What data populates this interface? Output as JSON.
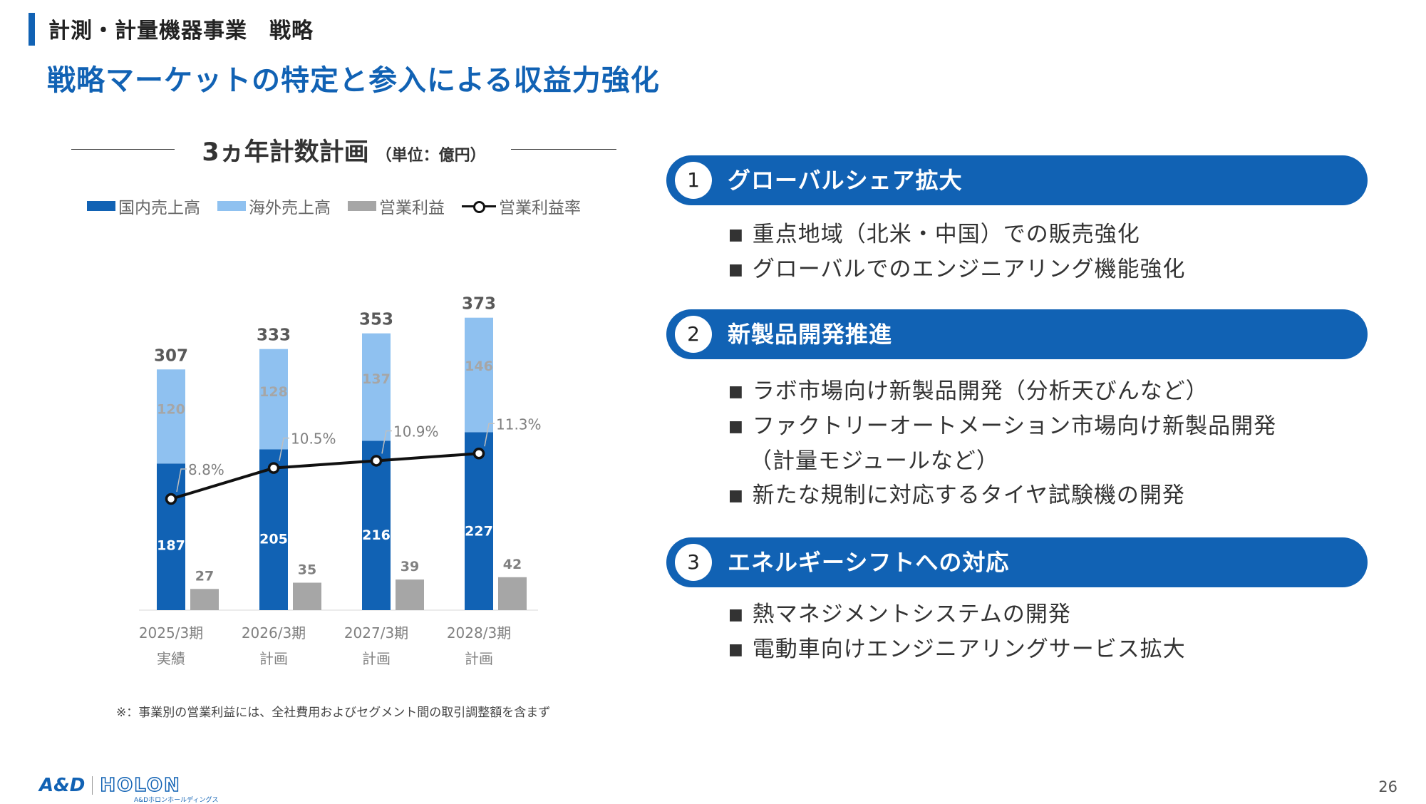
{
  "header": {
    "section_title": "計測・計量機器事業　戦略",
    "headline": "戦略マーケットの特定と参入による収益力強化"
  },
  "chart_title": {
    "main": "3ヵ年計数計画",
    "unit": "（単位：億円）"
  },
  "chart_data": {
    "type": "bar",
    "categories": [
      "2025/3期\n実績",
      "2026/3期\n計画",
      "2027/3期\n計画",
      "2028/3期\n計画"
    ],
    "category_lines": [
      [
        "2025/3期",
        "実績"
      ],
      [
        "2026/3期",
        "計画"
      ],
      [
        "2027/3期",
        "計画"
      ],
      [
        "2028/3期",
        "計画"
      ]
    ],
    "series": [
      {
        "name": "国内売上高",
        "kind": "stacked-bar",
        "stack": "sales",
        "color": "#1162b4",
        "values": [
          187,
          205,
          216,
          227
        ],
        "labels": [
          "187",
          "205",
          "216",
          "227"
        ]
      },
      {
        "name": "海外売上高",
        "kind": "stacked-bar",
        "stack": "sales",
        "color": "#8fc1f0",
        "values": [
          120,
          128,
          137,
          146
        ],
        "labels": [
          "120",
          "128",
          "137",
          "146"
        ]
      },
      {
        "name": "営業利益",
        "kind": "bar",
        "color": "#a6a6a6",
        "values": [
          27,
          35,
          39,
          42
        ],
        "labels": [
          "27",
          "35",
          "39",
          "42"
        ]
      },
      {
        "name": "営業利益率",
        "kind": "line",
        "color": "#111111",
        "values": [
          8.8,
          10.5,
          10.9,
          11.3
        ],
        "labels": [
          "8.8%",
          "10.5%",
          "10.9%",
          "11.3%"
        ]
      }
    ],
    "totals": [
      "307",
      "333",
      "353",
      "373"
    ],
    "legend_position": "top",
    "grid": false
  },
  "footnote": "※：事業別の営業利益には、全社費用およびセグメント間の取引調整額を含まず",
  "strategies": [
    {
      "number": "1",
      "title": "グローバルシェア拡大",
      "bullets": [
        "重点地域（北米・中国）での販売強化",
        "グローバルでのエンジニアリング機能強化"
      ]
    },
    {
      "number": "2",
      "title": "新製品開発推進",
      "bullets": [
        "ラボ市場向け新製品開発（分析天びんなど）",
        "ファクトリーオートメーション市場向け新製品開発",
        "新たな規制に対応するタイヤ試験機の開発"
      ],
      "continuation": "（計量モジュールなど）"
    },
    {
      "number": "3",
      "title": "エネルギーシフトへの対応",
      "bullets": [
        "熱マネジメントシステムの開発",
        "電動車向けエンジニアリングサービス拡大"
      ]
    }
  ],
  "bullet_mark": "■",
  "logo": {
    "brand": "A&D",
    "name": "HOLON",
    "sub": "A&Dホロンホールディングス"
  },
  "page_number": "26"
}
